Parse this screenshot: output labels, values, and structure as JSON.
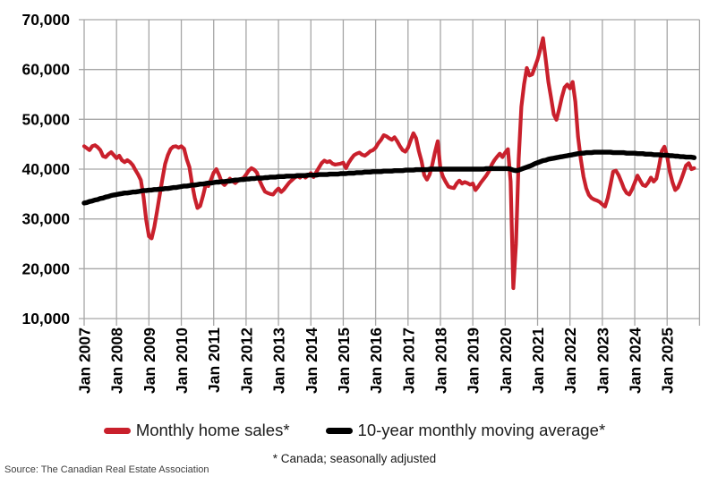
{
  "colors": {
    "sales_line": "#c9202c",
    "moving_avg_line": "#000000",
    "gridline": "#a6a6a6",
    "axis_text": "#000000",
    "source_text": "#404040",
    "background": "#ffffff"
  },
  "legend": {
    "items": [
      {
        "label": "Monthly home sales*",
        "color": "#c9202c"
      },
      {
        "label": "10-year monthly moving average*",
        "color": "#000000"
      }
    ]
  },
  "footnote": "* Canada; seasonally adjusted",
  "source": "Source: The Canadian Real Estate Association",
  "chart_data": {
    "type": "line",
    "title": "",
    "xlabel": "",
    "ylabel": "",
    "grid": true,
    "legend_position": "bottom",
    "ylim": [
      10000,
      70000
    ],
    "y_ticks": [
      {
        "value": 10000,
        "label": "10,000"
      },
      {
        "value": 20000,
        "label": "20,000"
      },
      {
        "value": 30000,
        "label": "30,000"
      },
      {
        "value": 40000,
        "label": "40,000"
      },
      {
        "value": 50000,
        "label": "50,000"
      },
      {
        "value": 60000,
        "label": "60,000"
      },
      {
        "value": 70000,
        "label": "70,000"
      }
    ],
    "x_tick_labels": [
      "Jan 2007",
      "Jan 2008",
      "Jan 2009",
      "Jan 2010",
      "Jan 2011",
      "Jan 2012",
      "Jan 2013",
      "Jan 2014",
      "Jan 2015",
      "Jan 2016",
      "Jan 2017",
      "Jan 2018",
      "Jan 2019",
      "Jan 2020",
      "Jan 2021",
      "Jan 2022",
      "Jan 2023",
      "Jan 2024",
      "Jan 2025"
    ],
    "x_monthly_start": "Jan 2007",
    "x_monthly_end": "Nov 2025",
    "units": "sales per month (values stored in thousands)",
    "series": [
      {
        "name": "Monthly home sales*",
        "color": "#c9202c",
        "values_thousands": [
          44.6,
          44.2,
          43.8,
          44.6,
          44.8,
          44.4,
          43.8,
          42.6,
          42.4,
          43.0,
          43.4,
          42.8,
          42.2,
          42.7,
          41.8,
          41.4,
          41.8,
          41.4,
          40.8,
          39.8,
          38.9,
          37.8,
          34.5,
          29.8,
          26.5,
          26.1,
          28.4,
          31.5,
          34.8,
          38.0,
          41.0,
          42.8,
          44.0,
          44.5,
          44.6,
          44.3,
          44.6,
          44.1,
          42.0,
          40.4,
          37.0,
          34.2,
          32.2,
          32.6,
          34.6,
          36.8,
          36.6,
          37.9,
          39.3,
          40.0,
          38.8,
          37.3,
          36.8,
          37.4,
          38.1,
          37.6,
          37.2,
          37.7,
          38.0,
          38.2,
          38.9,
          39.7,
          40.2,
          39.9,
          39.3,
          37.7,
          36.5,
          35.5,
          35.2,
          35.0,
          34.9,
          35.6,
          36.1,
          35.4,
          35.9,
          36.6,
          37.3,
          37.8,
          38.3,
          38.6,
          38.3,
          38.8,
          38.3,
          38.7,
          39.2,
          38.4,
          39.4,
          40.3,
          41.2,
          41.7,
          41.4,
          41.6,
          41.1,
          40.9,
          41.0,
          41.1,
          41.3,
          40.2,
          41.3,
          42.1,
          42.8,
          43.1,
          43.3,
          42.9,
          42.7,
          43.1,
          43.6,
          43.8,
          44.3,
          45.2,
          45.9,
          46.8,
          46.6,
          46.2,
          45.9,
          46.4,
          45.6,
          44.6,
          43.8,
          43.5,
          44.3,
          45.8,
          47.2,
          46.2,
          43.6,
          41.6,
          38.8,
          37.9,
          38.9,
          40.9,
          43.4,
          45.6,
          40.0,
          38.4,
          37.4,
          36.5,
          36.3,
          36.2,
          37.1,
          37.7,
          37.1,
          37.4,
          37.2,
          36.9,
          37.1,
          35.8,
          36.5,
          37.3,
          38.0,
          38.7,
          39.6,
          40.9,
          41.8,
          42.5,
          43.1,
          42.4,
          43.3,
          44.0,
          37.5,
          16.1,
          25.0,
          42.0,
          52.5,
          57.0,
          60.3,
          58.8,
          59.0,
          60.5,
          62.0,
          64.0,
          66.3,
          62.0,
          57.5,
          54.3,
          51.0,
          49.9,
          52.0,
          54.5,
          56.4,
          57.0,
          56.2,
          57.5,
          53.5,
          46.5,
          42.0,
          38.5,
          36.2,
          34.8,
          34.2,
          33.9,
          33.7,
          33.4,
          32.9,
          32.5,
          34.2,
          36.8,
          39.5,
          39.7,
          38.8,
          37.5,
          36.1,
          35.2,
          34.9,
          35.9,
          37.3,
          38.7,
          37.7,
          36.8,
          36.6,
          37.3,
          38.3,
          37.5,
          38.1,
          40.6,
          43.6,
          44.5,
          42.6,
          39.4,
          37.3,
          35.8,
          36.3,
          37.6,
          39.1,
          40.7,
          41.2,
          40.0,
          40.2
        ]
      },
      {
        "name": "10-year monthly moving average*",
        "color": "#000000",
        "values_thousands": [
          33.2,
          33.3,
          33.5,
          33.6,
          33.8,
          33.9,
          34.1,
          34.2,
          34.4,
          34.5,
          34.7,
          34.8,
          34.9,
          35.0,
          35.1,
          35.2,
          35.2,
          35.3,
          35.4,
          35.4,
          35.5,
          35.6,
          35.7,
          35.7,
          35.8,
          35.8,
          35.9,
          35.9,
          36.0,
          36.0,
          36.1,
          36.1,
          36.2,
          36.3,
          36.3,
          36.4,
          36.5,
          36.6,
          36.6,
          36.7,
          36.8,
          36.8,
          36.9,
          37.0,
          37.0,
          37.1,
          37.2,
          37.2,
          37.3,
          37.4,
          37.4,
          37.5,
          37.5,
          37.6,
          37.6,
          37.7,
          37.8,
          37.8,
          37.9,
          37.9,
          38.0,
          38.0,
          38.1,
          38.1,
          38.2,
          38.2,
          38.2,
          38.3,
          38.3,
          38.4,
          38.4,
          38.4,
          38.5,
          38.5,
          38.5,
          38.6,
          38.6,
          38.6,
          38.6,
          38.7,
          38.7,
          38.7,
          38.7,
          38.8,
          38.8,
          38.8,
          38.8,
          38.9,
          38.9,
          38.9,
          38.9,
          39.0,
          39.0,
          39.0,
          39.0,
          39.1,
          39.1,
          39.1,
          39.2,
          39.2,
          39.2,
          39.3,
          39.3,
          39.3,
          39.4,
          39.4,
          39.4,
          39.5,
          39.5,
          39.5,
          39.5,
          39.6,
          39.6,
          39.6,
          39.6,
          39.7,
          39.7,
          39.7,
          39.7,
          39.8,
          39.8,
          39.8,
          39.8,
          39.9,
          39.9,
          39.9,
          39.9,
          39.9,
          40.0,
          40.0,
          40.0,
          40.0,
          40.0,
          40.0,
          40.0,
          40.0,
          40.0,
          40.0,
          40.0,
          40.0,
          40.0,
          40.0,
          40.0,
          40.0,
          40.0,
          40.0,
          40.0,
          40.0,
          40.0,
          40.1,
          40.1,
          40.1,
          40.1,
          40.1,
          40.1,
          40.1,
          40.1,
          40.1,
          40.0,
          39.8,
          39.7,
          39.8,
          40.0,
          40.2,
          40.4,
          40.6,
          40.8,
          41.1,
          41.3,
          41.5,
          41.7,
          41.8,
          42.0,
          42.1,
          42.2,
          42.3,
          42.4,
          42.5,
          42.6,
          42.7,
          42.8,
          42.9,
          43.0,
          43.1,
          43.2,
          43.2,
          43.3,
          43.3,
          43.3,
          43.4,
          43.4,
          43.4,
          43.4,
          43.4,
          43.4,
          43.4,
          43.3,
          43.3,
          43.3,
          43.3,
          43.3,
          43.2,
          43.2,
          43.2,
          43.2,
          43.1,
          43.1,
          43.1,
          43.0,
          43.0,
          43.0,
          42.9,
          42.9,
          42.9,
          42.8,
          42.8,
          42.8,
          42.7,
          42.7,
          42.6,
          42.6,
          42.5,
          42.5,
          42.4,
          42.4,
          42.4,
          42.3
        ]
      }
    ]
  }
}
